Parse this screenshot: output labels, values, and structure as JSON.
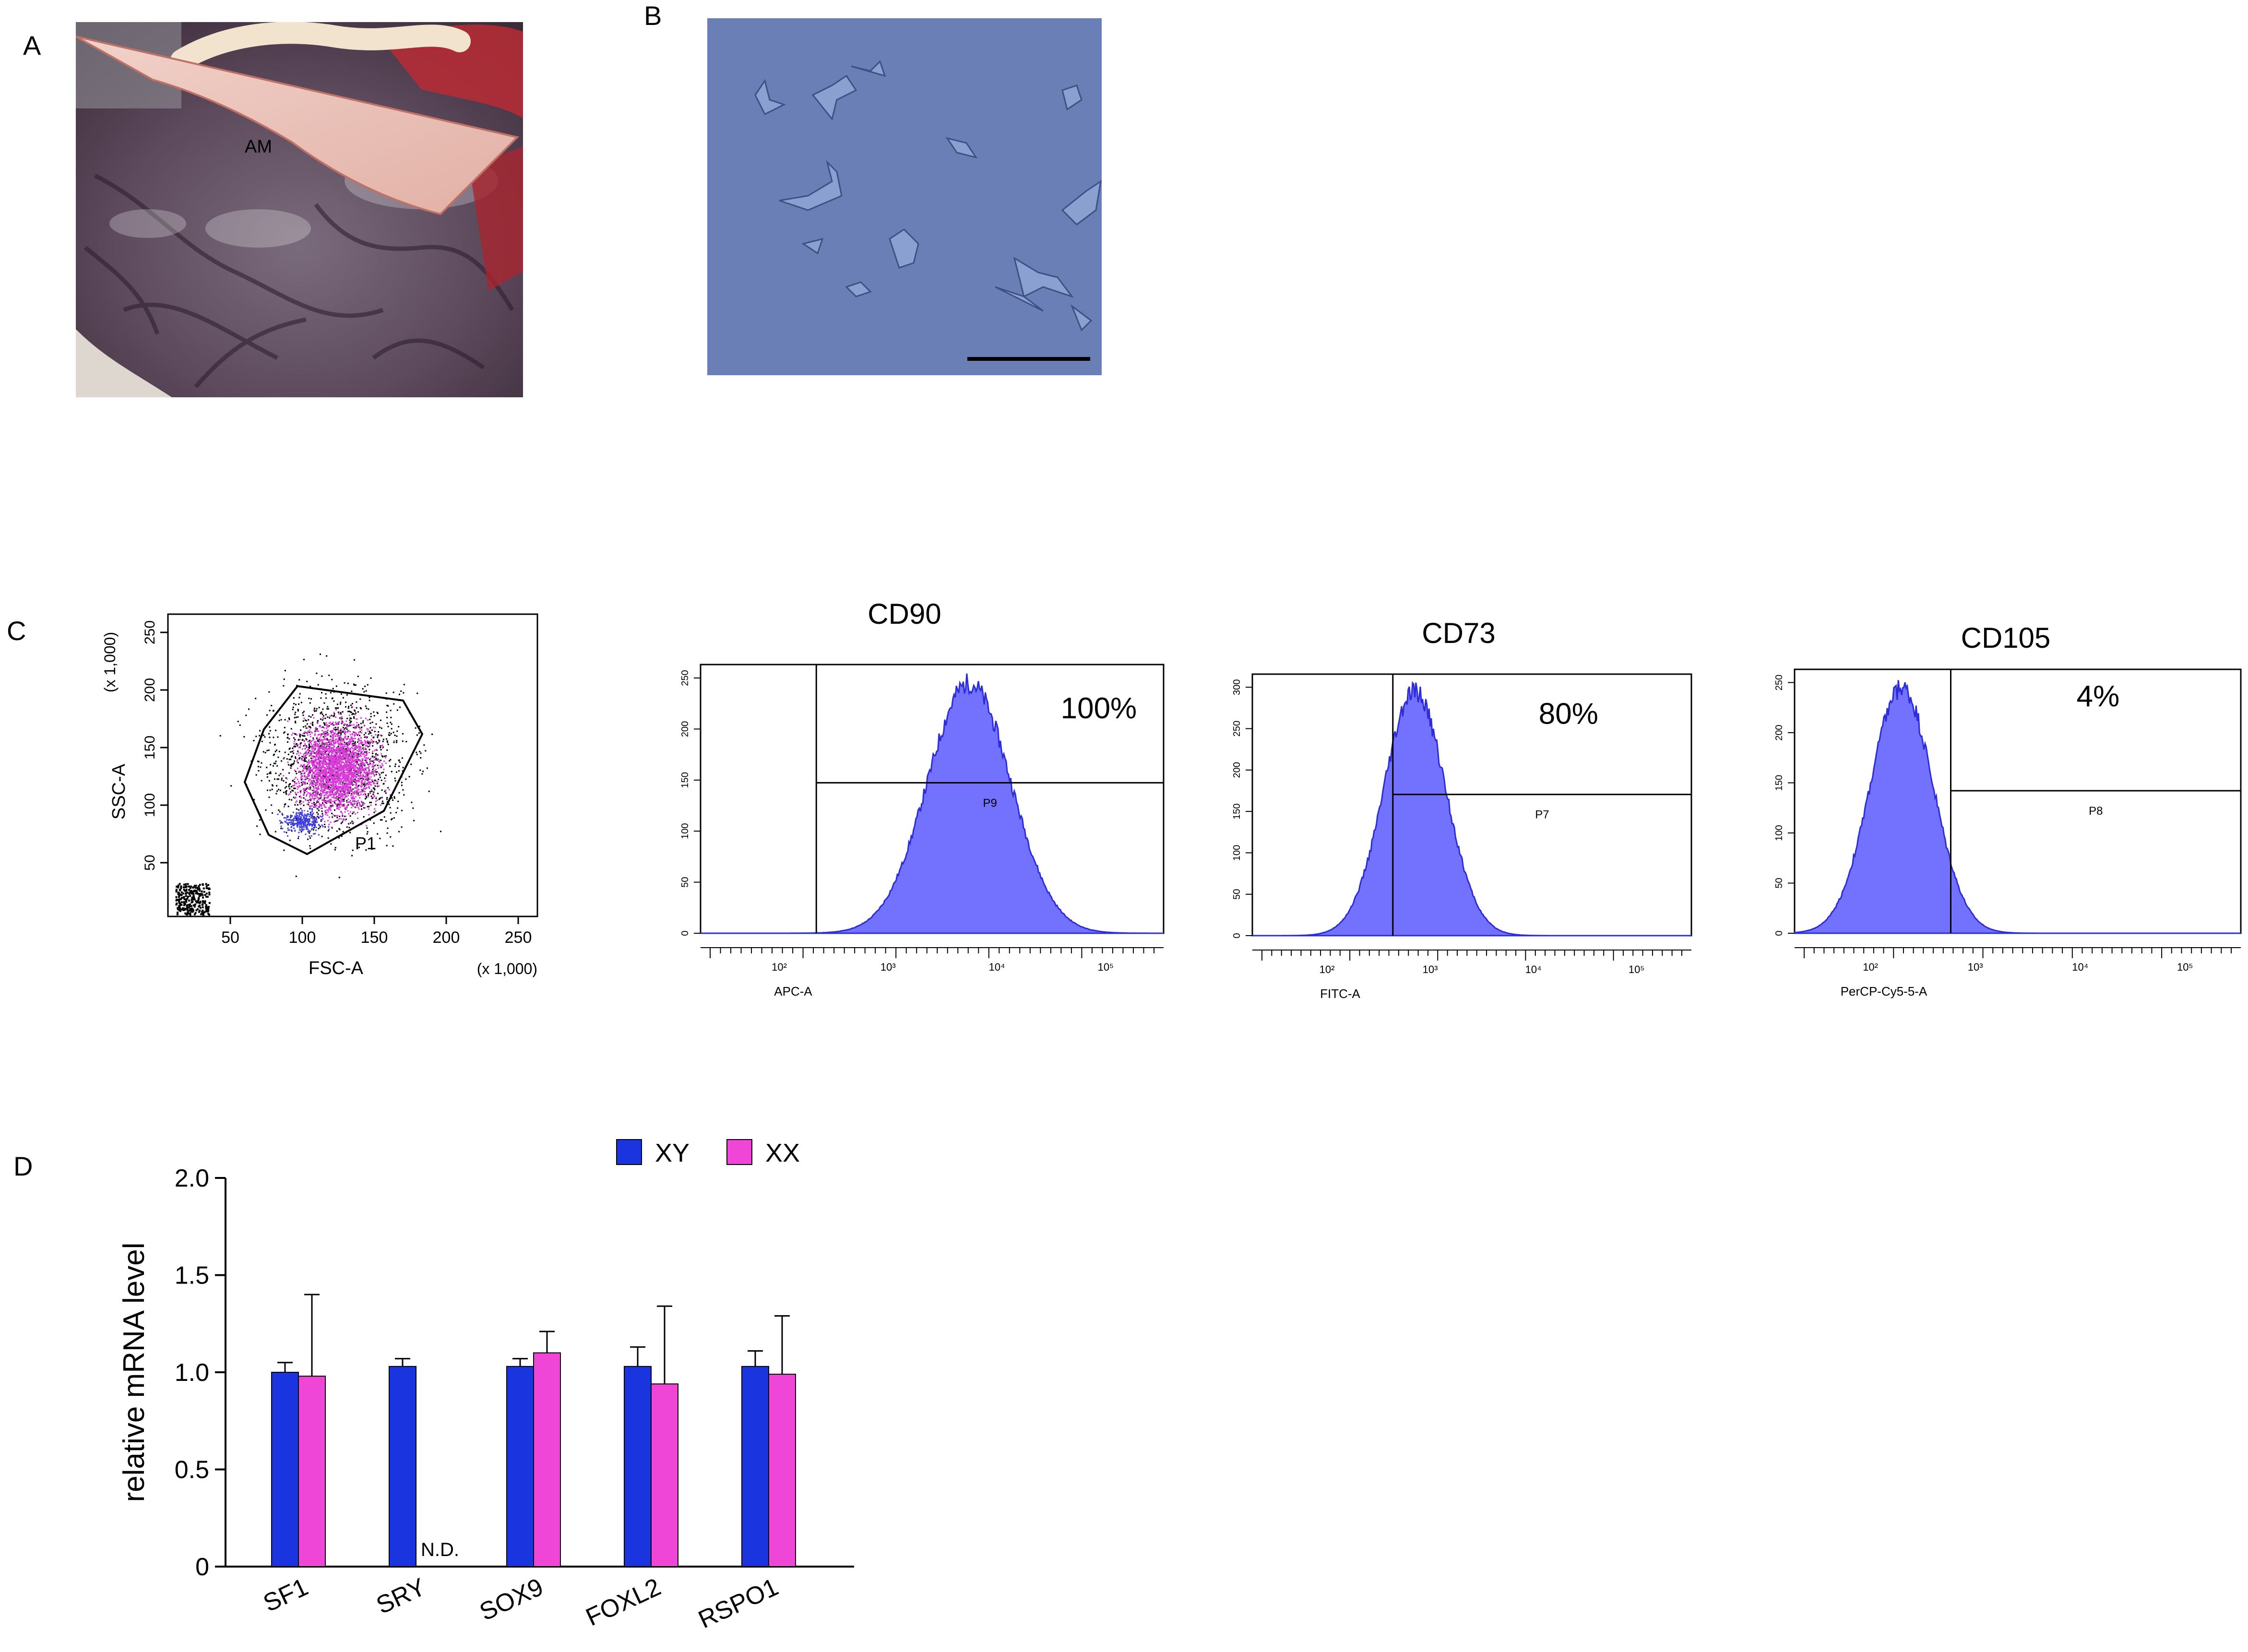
{
  "panels": {
    "A": {
      "letter": "A",
      "label": "AM"
    },
    "B": {
      "letter": "B"
    },
    "C": {
      "letter": "C"
    },
    "D": {
      "letter": "D"
    }
  },
  "colors": {
    "xy": "#1a35e0",
    "xx": "#f046d8",
    "histogram_fill": "#7272ff",
    "histogram_edge": "#2c2cd8",
    "scatter_gate": "#d93cd9"
  },
  "scatter": {
    "ylabel": "SSC-A",
    "ylabel_scale": "(x 1,000)",
    "xlabel": "FSC-A",
    "xlabel_scale": "(x 1,000)",
    "gate_label": "P1",
    "x_ticks": [
      "50",
      "100",
      "150",
      "200",
      "250"
    ],
    "y_ticks": [
      "50",
      "100",
      "150",
      "200",
      "250"
    ]
  },
  "histograms": [
    {
      "title": "CD90",
      "percent": "100%",
      "gate": "P9",
      "axis": "APC-A",
      "x_ticks": [
        "10²",
        "10³",
        "10⁴",
        "10⁵"
      ],
      "y_ticks": [
        "0",
        "50",
        "100",
        "150",
        "200",
        "250"
      ]
    },
    {
      "title": "CD73",
      "percent": "80%",
      "gate": "P7",
      "axis": "FITC-A",
      "x_ticks": [
        "10²",
        "10³",
        "10⁴",
        "10⁵"
      ],
      "y_ticks": [
        "0",
        "50",
        "100",
        "150",
        "200",
        "250",
        "300"
      ]
    },
    {
      "title": "CD105",
      "percent": "4%",
      "gate": "P8",
      "axis": "PerCP-Cy5-5-A",
      "x_ticks": [
        "10²",
        "10³",
        "10⁴",
        "10⁵"
      ],
      "y_ticks": [
        "0",
        "50",
        "100",
        "150",
        "200",
        "250"
      ]
    }
  ],
  "chart_data": {
    "type": "bar",
    "title": "",
    "xlabel": "",
    "ylabel": "relative mRNA level",
    "ylim": [
      0,
      2.0
    ],
    "yticks": [
      "0",
      "0.5",
      "1.0",
      "1.5",
      "2.0"
    ],
    "categories": [
      "SF1",
      "SRY",
      "SOX9",
      "FOXL2",
      "RSPO1"
    ],
    "series": [
      {
        "name": "XY",
        "values": [
          1.0,
          1.03,
          1.03,
          1.03,
          1.03
        ],
        "errors": [
          0.05,
          0.04,
          0.04,
          0.1,
          0.08
        ]
      },
      {
        "name": "XX",
        "values": [
          0.98,
          null,
          1.1,
          0.94,
          0.99
        ],
        "errors": [
          0.42,
          null,
          0.11,
          0.4,
          0.3
        ]
      }
    ],
    "annotations": [
      {
        "category": "SRY",
        "series": "XX",
        "text": "N.D."
      }
    ],
    "legend": "top"
  }
}
